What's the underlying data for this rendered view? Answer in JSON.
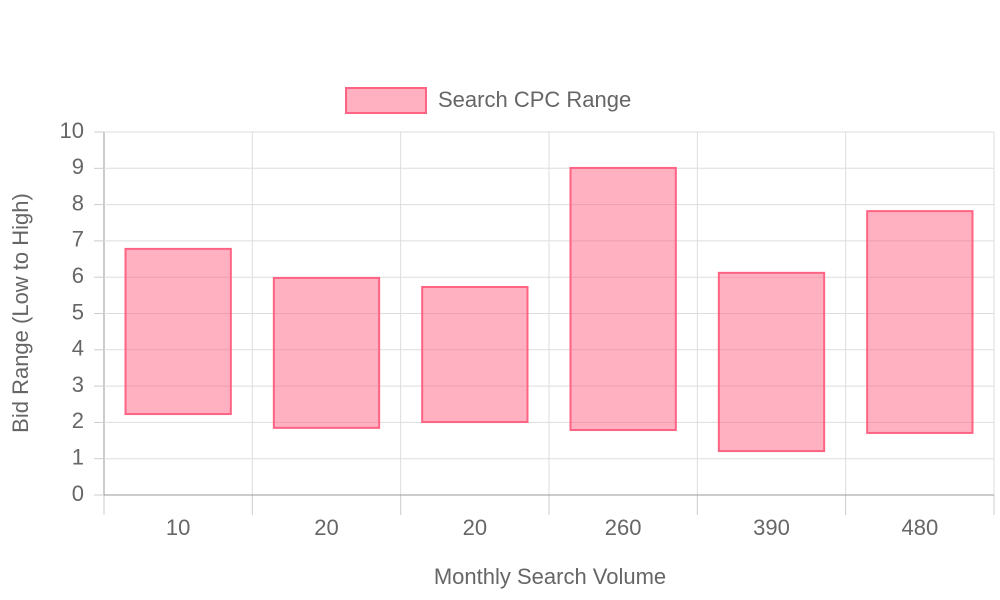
{
  "chart_data": {
    "type": "floating-bar",
    "x_label": "Monthly Search Volume",
    "y_label": "Bid Range (Low to High)",
    "categories": [
      "10",
      "20",
      "20",
      "260",
      "390",
      "480"
    ],
    "series": [
      {
        "name": "Search CPC Range",
        "color": "#ff6384",
        "values": [
          [
            2.23,
            6.78
          ],
          [
            1.85,
            5.98
          ],
          [
            2.01,
            5.73
          ],
          [
            1.79,
            9.01
          ],
          [
            1.21,
            6.12
          ],
          [
            1.71,
            7.82
          ]
        ]
      }
    ],
    "ylim": [
      0,
      10
    ],
    "yticks": [
      0,
      1,
      2,
      3,
      4,
      5,
      6,
      7,
      8,
      9,
      10
    ],
    "grid": true,
    "legend": "top"
  }
}
